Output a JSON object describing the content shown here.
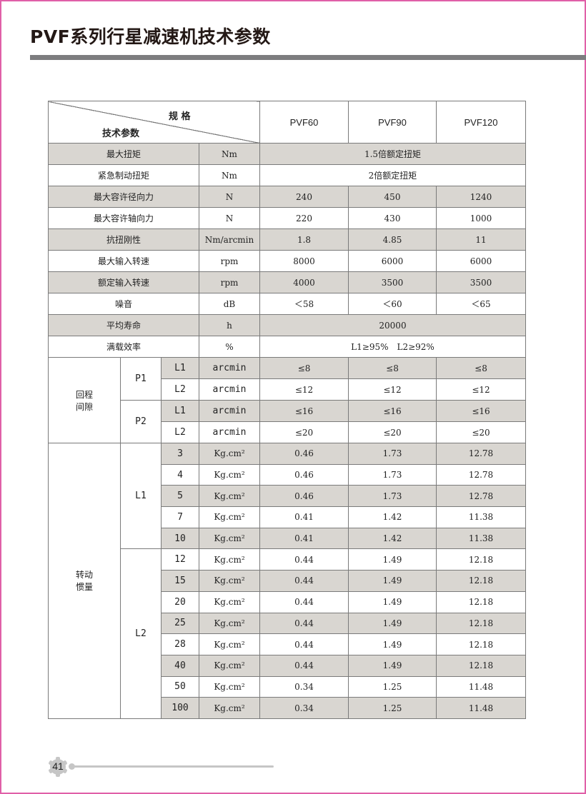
{
  "title": "PVF系列行星减速机技术参数",
  "header": {
    "spec_label": "规 格",
    "param_label": "技术参数",
    "models": [
      "PVF60",
      "PVF90",
      "PVF120"
    ]
  },
  "rows": [
    {
      "name": "最大扭矩",
      "unit": "Nm",
      "span": "1.5倍额定扭矩"
    },
    {
      "name": "紧急制动扭矩",
      "unit": "Nm",
      "span": "2倍额定扭矩"
    },
    {
      "name": "最大容许径向力",
      "unit": "N",
      "values": [
        "240",
        "450",
        "1240"
      ]
    },
    {
      "name": "最大容许轴向力",
      "unit": "N",
      "values": [
        "220",
        "430",
        "1000"
      ]
    },
    {
      "name": "抗扭刚性",
      "unit": "Nm/arcmin",
      "values": [
        "1.8",
        "4.85",
        "11"
      ]
    },
    {
      "name": "最大输入转速",
      "unit": "rpm",
      "values": [
        "8000",
        "6000",
        "6000"
      ]
    },
    {
      "name": "额定输入转速",
      "unit": "rpm",
      "values": [
        "4000",
        "3500",
        "3500"
      ]
    },
    {
      "name": "噪音",
      "unit": "dB",
      "values": [
        "＜58",
        "＜60",
        "＜65"
      ]
    },
    {
      "name": "平均寿命",
      "unit": "h",
      "span": "20000"
    },
    {
      "name": "满载效率",
      "unit": "%",
      "span": "L1≥95%　L2≥92%"
    }
  ],
  "backlash": {
    "name": "回程\n间隙",
    "groups": [
      {
        "label": "P1",
        "rows": [
          {
            "stage": "L1",
            "unit": "arcmin",
            "values": [
              "≤8",
              "≤8",
              "≤8"
            ]
          },
          {
            "stage": "L2",
            "unit": "arcmin",
            "values": [
              "≤12",
              "≤12",
              "≤12"
            ]
          }
        ]
      },
      {
        "label": "P2",
        "rows": [
          {
            "stage": "L1",
            "unit": "arcmin",
            "values": [
              "≤16",
              "≤16",
              "≤16"
            ]
          },
          {
            "stage": "L2",
            "unit": "arcmin",
            "values": [
              "≤20",
              "≤20",
              "≤20"
            ]
          }
        ]
      }
    ]
  },
  "inertia": {
    "name": "转动\n惯量",
    "unit": "Kg.cm²",
    "groups": [
      {
        "label": "L1",
        "rows": [
          {
            "ratio": "3",
            "values": [
              "0.46",
              "1.73",
              "12.78"
            ]
          },
          {
            "ratio": "4",
            "values": [
              "0.46",
              "1.73",
              "12.78"
            ]
          },
          {
            "ratio": "5",
            "values": [
              "0.46",
              "1.73",
              "12.78"
            ]
          },
          {
            "ratio": "7",
            "values": [
              "0.41",
              "1.42",
              "11.38"
            ]
          },
          {
            "ratio": "10",
            "values": [
              "0.41",
              "1.42",
              "11.38"
            ]
          }
        ]
      },
      {
        "label": "L2",
        "rows": [
          {
            "ratio": "12",
            "values": [
              "0.44",
              "1.49",
              "12.18"
            ]
          },
          {
            "ratio": "15",
            "values": [
              "0.44",
              "1.49",
              "12.18"
            ]
          },
          {
            "ratio": "20",
            "values": [
              "0.44",
              "1.49",
              "12.18"
            ]
          },
          {
            "ratio": "25",
            "values": [
              "0.44",
              "1.49",
              "12.18"
            ]
          },
          {
            "ratio": "28",
            "values": [
              "0.44",
              "1.49",
              "12.18"
            ]
          },
          {
            "ratio": "40",
            "values": [
              "0.44",
              "1.49",
              "12.18"
            ]
          },
          {
            "ratio": "50",
            "values": [
              "0.34",
              "1.25",
              "11.48"
            ]
          },
          {
            "ratio": "100",
            "values": [
              "0.34",
              "1.25",
              "11.48"
            ]
          }
        ]
      }
    ]
  },
  "footer": {
    "page_number": "41"
  },
  "colors": {
    "frame": "#e060a8",
    "rule": "#7d7d7f",
    "shade": "#d9d6d1"
  }
}
